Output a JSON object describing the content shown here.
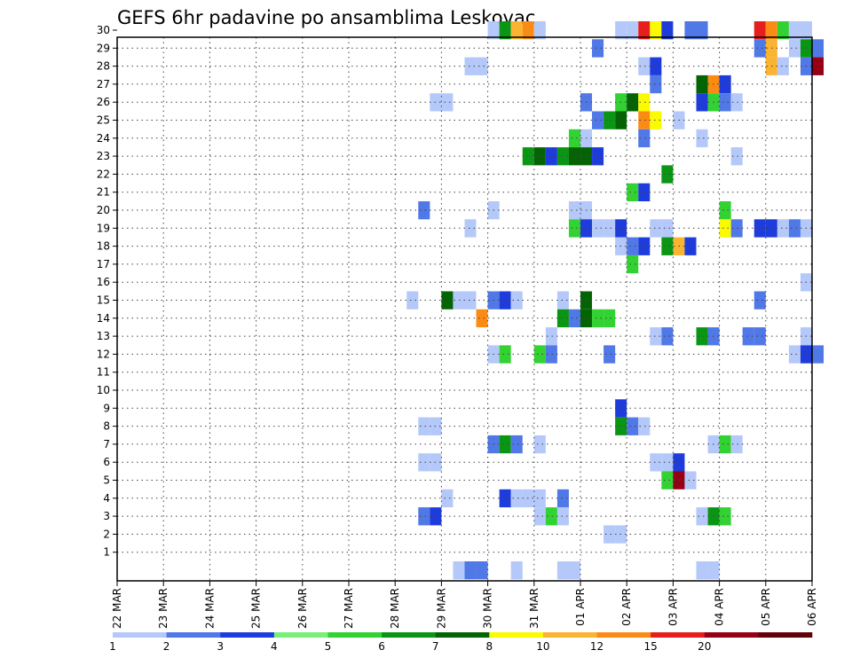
{
  "chart_data": {
    "type": "heatmap",
    "title": "GEFS 6hr padavine po ansamblima Leskovac",
    "xlabel": "",
    "ylabel": "",
    "x_ticks": [
      "22 MAR",
      "23 MAR",
      "24 MAR",
      "25 MAR",
      "26 MAR",
      "27 MAR",
      "28 MAR",
      "29 MAR",
      "30 MAR",
      "31 MAR",
      "01 APR",
      "02 APR",
      "03 APR",
      "04 APR",
      "05 APR",
      "06 APR"
    ],
    "y_ticks": [
      "1",
      "2",
      "3",
      "4",
      "5",
      "6",
      "7",
      "8",
      "9",
      "10",
      "11",
      "12",
      "13",
      "14",
      "15",
      "16",
      "17",
      "18",
      "19",
      "20",
      "21",
      "22",
      "23",
      "24",
      "25",
      "26",
      "27",
      "28",
      "29",
      "30"
    ],
    "grid": true,
    "legend": {
      "position": "bottom",
      "levels": [
        "1",
        "2",
        "3",
        "4",
        "5",
        "6",
        "7",
        "8",
        "10",
        "12",
        "15",
        "20"
      ],
      "colors": [
        "#b4c8fa",
        "#5078e6",
        "#1e3cdc",
        "#78f078",
        "#32d232",
        "#0a9614",
        "#046404",
        "#fafa00",
        "#fab432",
        "#fa8c14",
        "#e61e1e",
        "#960014",
        "#640008"
      ]
    },
    "cells": [
      [
        30,
        "30 00",
        1
      ],
      [
        30,
        "30 06",
        6
      ],
      [
        30,
        "30 12",
        10
      ],
      [
        30,
        "30 18",
        12
      ],
      [
        30,
        "31 00",
        1
      ],
      [
        30,
        "01 18",
        1
      ],
      [
        30,
        "02 00",
        1
      ],
      [
        30,
        "02 06",
        15
      ],
      [
        30,
        "02 12",
        8
      ],
      [
        30,
        "02 18",
        3
      ],
      [
        30,
        "03 06",
        2
      ],
      [
        30,
        "03 12",
        2
      ],
      [
        30,
        "04 18",
        15
      ],
      [
        30,
        "05 00",
        12
      ],
      [
        30,
        "05 06",
        5
      ],
      [
        30,
        "05 12",
        1
      ],
      [
        30,
        "05 18",
        1
      ],
      [
        29,
        "01 06",
        2
      ],
      [
        29,
        "04 18",
        2
      ],
      [
        29,
        "05 00",
        10
      ],
      [
        29,
        "05 12",
        1
      ],
      [
        29,
        "05 18",
        6
      ],
      [
        29,
        "06 00",
        2
      ],
      [
        28,
        "29 12",
        1
      ],
      [
        28,
        "29 18",
        1
      ],
      [
        28,
        "02 06",
        1
      ],
      [
        28,
        "02 12",
        3
      ],
      [
        28,
        "05 00",
        10
      ],
      [
        28,
        "05 06",
        1
      ],
      [
        28,
        "05 18",
        2
      ],
      [
        28,
        "06 00",
        20
      ],
      [
        27,
        "02 12",
        2
      ],
      [
        27,
        "03 12",
        7
      ],
      [
        27,
        "03 18",
        12
      ],
      [
        27,
        "04 00",
        3
      ],
      [
        26,
        "28 18",
        1
      ],
      [
        26,
        "29 00",
        1
      ],
      [
        26,
        "01 00",
        2
      ],
      [
        26,
        "01 18",
        5
      ],
      [
        26,
        "02 00",
        7
      ],
      [
        26,
        "02 06",
        8
      ],
      [
        26,
        "03 12",
        3
      ],
      [
        26,
        "03 18",
        5
      ],
      [
        26,
        "04 00",
        2
      ],
      [
        26,
        "04 06",
        1
      ],
      [
        25,
        "01 06",
        2
      ],
      [
        25,
        "01 12",
        6
      ],
      [
        25,
        "01 18",
        7
      ],
      [
        25,
        "02 06",
        12
      ],
      [
        25,
        "02 12",
        8
      ],
      [
        25,
        "03 00",
        1
      ],
      [
        24,
        "31 18",
        5
      ],
      [
        24,
        "01 00",
        1
      ],
      [
        24,
        "02 06",
        2
      ],
      [
        24,
        "03 12",
        1
      ],
      [
        23,
        "30 18",
        6
      ],
      [
        23,
        "31 00",
        7
      ],
      [
        23,
        "31 06",
        3
      ],
      [
        23,
        "31 12",
        6
      ],
      [
        23,
        "31 18",
        7
      ],
      [
        23,
        "01 00",
        7
      ],
      [
        23,
        "01 06",
        3
      ],
      [
        23,
        "04 06",
        1
      ],
      [
        22,
        "02 18",
        6
      ],
      [
        21,
        "02 00",
        5
      ],
      [
        21,
        "02 06",
        3
      ],
      [
        20,
        "28 12",
        2
      ],
      [
        20,
        "30 00",
        1
      ],
      [
        20,
        "31 18",
        1
      ],
      [
        20,
        "01 00",
        1
      ],
      [
        20,
        "04 00",
        5
      ],
      [
        19,
        "29 12",
        1
      ],
      [
        19,
        "31 18",
        5
      ],
      [
        19,
        "01 00",
        3
      ],
      [
        19,
        "01 06",
        1
      ],
      [
        19,
        "01 12",
        1
      ],
      [
        19,
        "01 18",
        3
      ],
      [
        19,
        "02 12",
        1
      ],
      [
        19,
        "02 18",
        1
      ],
      [
        19,
        "04 00",
        8
      ],
      [
        19,
        "04 06",
        2
      ],
      [
        19,
        "04 18",
        3
      ],
      [
        19,
        "05 00",
        3
      ],
      [
        19,
        "05 06",
        1
      ],
      [
        19,
        "05 12",
        2
      ],
      [
        19,
        "05 18",
        1
      ],
      [
        18,
        "01 18",
        1
      ],
      [
        18,
        "02 00",
        2
      ],
      [
        18,
        "02 06",
        3
      ],
      [
        18,
        "02 18",
        6
      ],
      [
        18,
        "03 00",
        10
      ],
      [
        18,
        "03 06",
        3
      ],
      [
        17,
        "02 00",
        5
      ],
      [
        16,
        "05 18",
        1
      ],
      [
        15,
        "28 06",
        1
      ],
      [
        15,
        "29 00",
        7
      ],
      [
        15,
        "29 06",
        1
      ],
      [
        15,
        "29 12",
        1
      ],
      [
        15,
        "30 00",
        2
      ],
      [
        15,
        "30 06",
        3
      ],
      [
        15,
        "30 12",
        1
      ],
      [
        15,
        "31 12",
        1
      ],
      [
        15,
        "01 00",
        7
      ],
      [
        15,
        "04 18",
        2
      ],
      [
        14,
        "29 18",
        12
      ],
      [
        14,
        "31 12",
        6
      ],
      [
        14,
        "31 18",
        2
      ],
      [
        14,
        "01 00",
        7
      ],
      [
        14,
        "01 06",
        5
      ],
      [
        14,
        "01 12",
        5
      ],
      [
        13,
        "31 06",
        1
      ],
      [
        13,
        "02 12",
        1
      ],
      [
        13,
        "02 18",
        2
      ],
      [
        13,
        "03 12",
        6
      ],
      [
        13,
        "03 18",
        2
      ],
      [
        13,
        "04 12",
        2
      ],
      [
        13,
        "04 18",
        2
      ],
      [
        13,
        "05 18",
        1
      ],
      [
        12,
        "30 00",
        1
      ],
      [
        12,
        "30 06",
        5
      ],
      [
        12,
        "31 00",
        5
      ],
      [
        12,
        "31 06",
        2
      ],
      [
        12,
        "01 12",
        2
      ],
      [
        12,
        "05 12",
        1
      ],
      [
        12,
        "05 18",
        3
      ],
      [
        12,
        "06 00",
        2
      ],
      [
        9,
        "01 18",
        3
      ],
      [
        8,
        "28 12",
        1
      ],
      [
        8,
        "28 18",
        1
      ],
      [
        8,
        "01 18",
        6
      ],
      [
        8,
        "02 00",
        2
      ],
      [
        8,
        "02 06",
        1
      ],
      [
        7,
        "30 00",
        2
      ],
      [
        7,
        "30 06",
        6
      ],
      [
        7,
        "30 12",
        2
      ],
      [
        7,
        "31 00",
        1
      ],
      [
        7,
        "03 18",
        1
      ],
      [
        7,
        "04 00",
        5
      ],
      [
        7,
        "04 06",
        1
      ],
      [
        6,
        "28 12",
        1
      ],
      [
        6,
        "28 18",
        1
      ],
      [
        6,
        "02 12",
        1
      ],
      [
        6,
        "02 18",
        1
      ],
      [
        6,
        "03 00",
        3
      ],
      [
        5,
        "02 18",
        5
      ],
      [
        5,
        "03 00",
        20
      ],
      [
        5,
        "03 06",
        1
      ],
      [
        4,
        "29 00",
        1
      ],
      [
        4,
        "30 06",
        3
      ],
      [
        4,
        "30 12",
        1
      ],
      [
        4,
        "30 18",
        1
      ],
      [
        4,
        "31 00",
        1
      ],
      [
        4,
        "31 12",
        2
      ],
      [
        3,
        "28 12",
        2
      ],
      [
        3,
        "28 18",
        3
      ],
      [
        3,
        "31 00",
        1
      ],
      [
        3,
        "31 06",
        5
      ],
      [
        3,
        "31 12",
        1
      ],
      [
        3,
        "03 12",
        1
      ],
      [
        3,
        "03 18",
        6
      ],
      [
        3,
        "04 00",
        5
      ],
      [
        2,
        "01 12",
        1
      ],
      [
        2,
        "01 18",
        1
      ],
      [
        0,
        "29 06",
        1
      ],
      [
        0,
        "29 12",
        2
      ],
      [
        0,
        "29 18",
        2
      ],
      [
        0,
        "30 12",
        1
      ],
      [
        0,
        "31 12",
        1
      ],
      [
        0,
        "31 18",
        1
      ],
      [
        0,
        "03 12",
        1
      ],
      [
        0,
        "03 18",
        1
      ]
    ]
  }
}
